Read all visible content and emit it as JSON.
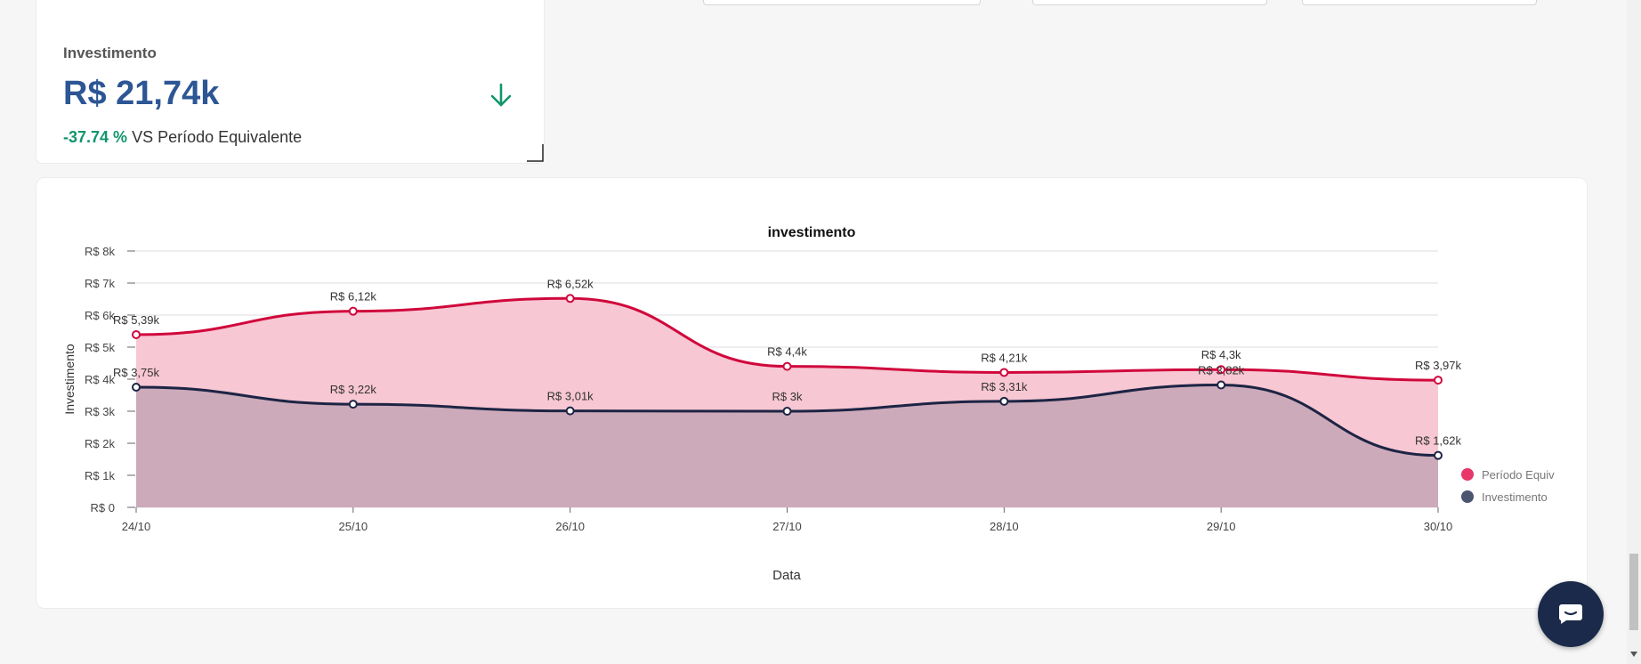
{
  "kpi": {
    "title": "Investimento",
    "value": "R$ 21,74k",
    "change_pct": "-37.74 %",
    "change_label": "VS Período Equivalente",
    "trend_icon": "arrow-down-icon",
    "trend_color": "#11956d"
  },
  "chart_data": {
    "type": "area",
    "title": "investimento",
    "xlabel": "Data",
    "ylabel": "Investimento",
    "categories": [
      "24/10",
      "25/10",
      "26/10",
      "27/10",
      "28/10",
      "29/10",
      "30/10"
    ],
    "y_ticks": [
      "R$ 0",
      "R$ 1k",
      "R$ 2k",
      "R$ 3k",
      "R$ 4k",
      "R$ 5k",
      "R$ 6k",
      "R$ 7k",
      "R$ 8k"
    ],
    "ylim": [
      0,
      8000
    ],
    "grid": true,
    "legend_position": "right",
    "series": [
      {
        "name": "Período Equiv",
        "values": [
          5390,
          6120,
          6520,
          4400,
          4210,
          4300,
          3970
        ],
        "labels": [
          "R$ 5,39k",
          "R$ 6,12k",
          "R$ 6,52k",
          "R$ 4,4k",
          "R$ 4,21k",
          "R$ 4,3k",
          "R$ 3,97k"
        ],
        "line_color": "#d0083c",
        "fill_color": "#f7c7d3",
        "legend_color": "#e8366a"
      },
      {
        "name": "Investimento",
        "values": [
          3750,
          3220,
          3010,
          3000,
          3310,
          3820,
          1620
        ],
        "labels": [
          "R$ 3,75k",
          "R$ 3,22k",
          "R$ 3,01k",
          "R$ 3k",
          "R$ 3,31k",
          "R$ 3,82k",
          "R$ 1,62k"
        ],
        "line_color": "#1d2444",
        "fill_color": "#c9a9b8",
        "legend_color": "#4a5570"
      }
    ]
  },
  "chat": {
    "icon": "chat-bubble-icon"
  }
}
